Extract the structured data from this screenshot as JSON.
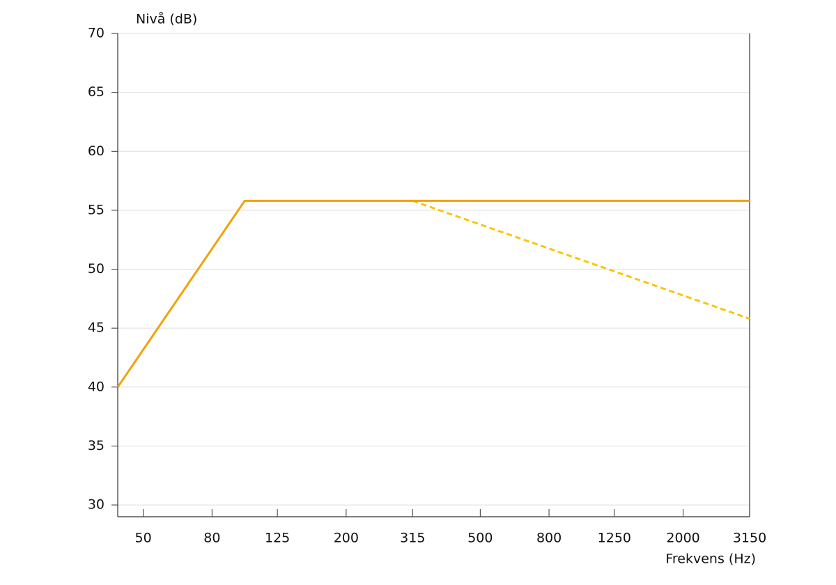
{
  "chart_data": {
    "type": "line",
    "y_label": "Nivå (dB)",
    "x_label": "Frekvens (Hz)",
    "xscale": "log",
    "grid": true,
    "xlim": [
      42,
      3150
    ],
    "ylim": [
      29,
      70
    ],
    "xticks": [
      50,
      80,
      125,
      200,
      315,
      500,
      800,
      1250,
      2000,
      3150
    ],
    "yticks": [
      30,
      35,
      40,
      45,
      50,
      55,
      60,
      65,
      70
    ],
    "series": [
      {
        "color": "#f0a30a",
        "dashed": false,
        "x": [
          42,
          100,
          3150
        ],
        "values": [
          40,
          55.8,
          55.8
        ]
      },
      {
        "color": "#fcc40a",
        "dashed": true,
        "x": [
          315,
          3150
        ],
        "values": [
          55.8,
          45.8
        ]
      }
    ]
  }
}
